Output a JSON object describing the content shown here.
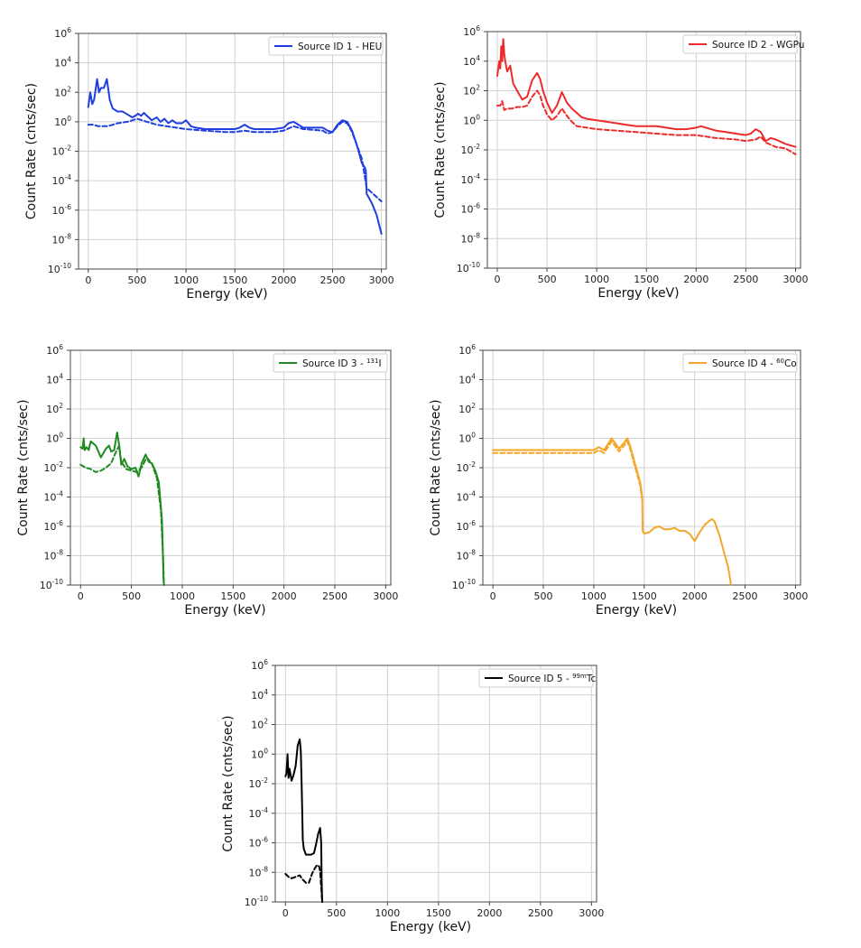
{
  "chart_data": [
    {
      "type": "line",
      "xlabel": "Energy (keV)",
      "ylabel": "Count Rate (cnts/sec)",
      "xlim": [
        -100,
        3050
      ],
      "ylim_log10": [
        -10,
        6
      ],
      "x_ticks": [
        0,
        500,
        1000,
        1500,
        2000,
        2500,
        3000
      ],
      "y_tick_exponents": [
        -10,
        -8,
        -6,
        -4,
        -2,
        0,
        2,
        4,
        6
      ],
      "log_y": true,
      "grid": true,
      "legend_position": "top-right",
      "color": "#1f3fe0",
      "legend": {
        "label": "Source ID 1 - HEU",
        "sup": "",
        "after": ""
      },
      "series": [
        {
          "style": "solid",
          "x": [
            0,
            20,
            40,
            60,
            90,
            110,
            130,
            160,
            190,
            220,
            250,
            300,
            350,
            400,
            450,
            480,
            510,
            540,
            570,
            600,
            650,
            700,
            740,
            780,
            820,
            860,
            900,
            960,
            1000,
            1050,
            1100,
            1200,
            1300,
            1400,
            1500,
            1550,
            1600,
            1650,
            1700,
            1800,
            1900,
            2000,
            2050,
            2100,
            2150,
            2200,
            2300,
            2400,
            2450,
            2500,
            2550,
            2600,
            2650,
            2700,
            2750,
            2800,
            2830,
            2840,
            2850,
            2900,
            2950,
            3000
          ],
          "y": [
            1.0,
            2.0,
            1.2,
            1.5,
            2.9,
            2.0,
            2.3,
            2.3,
            2.9,
            1.5,
            0.9,
            0.7,
            0.7,
            0.5,
            0.3,
            0.4,
            0.55,
            0.4,
            0.6,
            0.4,
            0.1,
            0.3,
            0.0,
            0.2,
            -0.1,
            0.1,
            -0.1,
            -0.1,
            0.1,
            -0.3,
            -0.4,
            -0.5,
            -0.5,
            -0.5,
            -0.5,
            -0.4,
            -0.2,
            -0.4,
            -0.5,
            -0.5,
            -0.5,
            -0.4,
            -0.1,
            0.0,
            -0.2,
            -0.4,
            -0.4,
            -0.4,
            -0.6,
            -0.7,
            -0.2,
            0.1,
            0.0,
            -0.6,
            -1.6,
            -2.8,
            -3.1,
            -3.3,
            -4.9,
            -5.5,
            -6.3,
            -7.6
          ]
        },
        {
          "style": "dashed",
          "x": [
            0,
            50,
            100,
            200,
            300,
            400,
            500,
            550,
            600,
            700,
            800,
            900,
            1000,
            1200,
            1400,
            1500,
            1600,
            1700,
            1900,
            2000,
            2100,
            2200,
            2400,
            2450,
            2500,
            2550,
            2600,
            2650,
            2700,
            2800,
            2850,
            2900,
            2950,
            3000
          ],
          "y": [
            -0.2,
            -0.2,
            -0.3,
            -0.3,
            -0.1,
            0.0,
            0.2,
            0.1,
            0.0,
            -0.2,
            -0.3,
            -0.4,
            -0.5,
            -0.6,
            -0.7,
            -0.7,
            -0.6,
            -0.7,
            -0.7,
            -0.6,
            -0.3,
            -0.5,
            -0.6,
            -0.8,
            -0.7,
            -0.3,
            0.0,
            -0.1,
            -0.7,
            -2.5,
            -4.5,
            -4.8,
            -5.1,
            -5.4
          ]
        }
      ]
    },
    {
      "type": "line",
      "xlabel": "Energy (keV)",
      "ylabel": "Count Rate (cnts/sec)",
      "xlim": [
        -100,
        3050
      ],
      "ylim_log10": [
        -10,
        6
      ],
      "x_ticks": [
        0,
        500,
        1000,
        1500,
        2000,
        2500,
        3000
      ],
      "y_tick_exponents": [
        -10,
        -8,
        -6,
        -4,
        -2,
        0,
        2,
        4,
        6
      ],
      "log_y": true,
      "grid": true,
      "legend_position": "top-right",
      "color": "#ee2b2b",
      "legend": {
        "label": "Source ID 2 - WGPu",
        "sup": "",
        "after": ""
      },
      "series": [
        {
          "style": "solid",
          "x": [
            0,
            20,
            30,
            40,
            50,
            60,
            70,
            80,
            100,
            130,
            160,
            200,
            250,
            300,
            350,
            400,
            430,
            460,
            500,
            550,
            600,
            650,
            700,
            750,
            800,
            850,
            900,
            1000,
            1100,
            1200,
            1300,
            1400,
            1500,
            1600,
            1700,
            1800,
            1900,
            2000,
            2050,
            2100,
            2200,
            2300,
            2400,
            2500,
            2550,
            2600,
            2650,
            2700,
            2750,
            2800,
            2900,
            3000
          ],
          "y": [
            3.0,
            4.0,
            3.5,
            5.0,
            4.0,
            5.5,
            4.5,
            4.0,
            3.3,
            3.7,
            2.5,
            2.0,
            1.4,
            1.6,
            2.7,
            3.2,
            2.8,
            2.0,
            1.2,
            0.5,
            1.0,
            1.9,
            1.2,
            0.8,
            0.5,
            0.2,
            0.1,
            0.0,
            -0.1,
            -0.2,
            -0.3,
            -0.4,
            -0.4,
            -0.4,
            -0.5,
            -0.6,
            -0.6,
            -0.5,
            -0.4,
            -0.5,
            -0.7,
            -0.8,
            -0.9,
            -1.0,
            -0.9,
            -0.6,
            -0.8,
            -1.4,
            -1.2,
            -1.3,
            -1.6,
            -1.8
          ]
        },
        {
          "style": "dashed",
          "x": [
            0,
            30,
            50,
            70,
            100,
            150,
            200,
            250,
            300,
            350,
            400,
            430,
            460,
            500,
            550,
            600,
            650,
            700,
            750,
            800,
            900,
            1000,
            1200,
            1400,
            1600,
            1800,
            2000,
            2100,
            2200,
            2400,
            2500,
            2600,
            2650,
            2700,
            2800,
            2900,
            3000
          ],
          "y": [
            1.0,
            1.0,
            1.3,
            0.7,
            0.8,
            0.8,
            0.9,
            0.9,
            1.0,
            1.6,
            2.0,
            1.7,
            1.0,
            0.4,
            0.0,
            0.3,
            0.8,
            0.3,
            -0.1,
            -0.4,
            -0.5,
            -0.6,
            -0.7,
            -0.8,
            -0.9,
            -1.0,
            -1.0,
            -1.1,
            -1.2,
            -1.3,
            -1.4,
            -1.3,
            -1.1,
            -1.5,
            -1.8,
            -1.9,
            -2.3
          ]
        }
      ]
    },
    {
      "type": "line",
      "xlabel": "Energy (keV)",
      "ylabel": "Count Rate (cnts/sec)",
      "xlim": [
        -100,
        3050
      ],
      "ylim_log10": [
        -10,
        6
      ],
      "x_ticks": [
        0,
        500,
        1000,
        1500,
        2000,
        2500,
        3000
      ],
      "y_tick_exponents": [
        -10,
        -8,
        -6,
        -4,
        -2,
        0,
        2,
        4,
        6
      ],
      "log_y": true,
      "grid": true,
      "legend_position": "top-right",
      "color": "#1f8a1f",
      "legend": {
        "label": "Source ID 3 - ",
        "sup": "131",
        "after": "I"
      },
      "series": [
        {
          "style": "solid",
          "x": [
            0,
            20,
            30,
            40,
            60,
            80,
            100,
            150,
            200,
            250,
            280,
            300,
            330,
            360,
            380,
            400,
            430,
            460,
            500,
            540,
            570,
            600,
            640,
            670,
            700,
            740,
            770,
            800,
            810,
            815,
            820
          ],
          "y": [
            -0.6,
            -0.7,
            0.0,
            -0.8,
            -0.6,
            -0.8,
            -0.2,
            -0.5,
            -1.3,
            -0.7,
            -0.5,
            -0.9,
            -0.8,
            0.4,
            -0.5,
            -1.8,
            -1.4,
            -1.9,
            -2.1,
            -2.0,
            -2.6,
            -1.7,
            -1.1,
            -1.6,
            -1.7,
            -2.3,
            -3.0,
            -5.5,
            -8.0,
            -9.5,
            -10.0
          ]
        },
        {
          "style": "dashed",
          "x": [
            0,
            50,
            100,
            150,
            200,
            250,
            300,
            350,
            380,
            400,
            450,
            500,
            550,
            600,
            650,
            700,
            750,
            790,
            810,
            820
          ],
          "y": [
            -1.8,
            -2.0,
            -2.1,
            -2.3,
            -2.2,
            -2.0,
            -1.7,
            -0.9,
            -0.5,
            -1.6,
            -2.1,
            -2.2,
            -2.3,
            -2.0,
            -1.3,
            -1.7,
            -2.7,
            -4.9,
            -8.0,
            -10.0
          ]
        }
      ]
    },
    {
      "type": "line",
      "xlabel": "Energy (keV)",
      "ylabel": "Count Rate (cnts/sec)",
      "xlim": [
        -100,
        3050
      ],
      "ylim_log10": [
        -10,
        6
      ],
      "x_ticks": [
        0,
        500,
        1000,
        1500,
        2000,
        2500,
        3000
      ],
      "y_tick_exponents": [
        -10,
        -8,
        -6,
        -4,
        -2,
        0,
        2,
        4,
        6
      ],
      "log_y": true,
      "grid": true,
      "legend_position": "top-right",
      "color": "#f4a62a",
      "legend": {
        "label": "Source ID 4 - ",
        "sup": "60",
        "after": "Co"
      },
      "series": [
        {
          "style": "solid",
          "x": [
            0,
            100,
            500,
            900,
            1000,
            1050,
            1100,
            1150,
            1175,
            1200,
            1250,
            1300,
            1333,
            1360,
            1400,
            1460,
            1480,
            1485,
            1500,
            1550,
            1600,
            1650,
            1700,
            1750,
            1800,
            1850,
            1900,
            1950,
            2000,
            2050,
            2100,
            2150,
            2175,
            2200,
            2250,
            2300,
            2330,
            2350,
            2360
          ],
          "y": [
            -0.8,
            -0.8,
            -0.8,
            -0.8,
            -0.8,
            -0.6,
            -0.8,
            -0.3,
            0.0,
            -0.2,
            -0.7,
            -0.3,
            0.0,
            -0.5,
            -1.5,
            -3.0,
            -4.0,
            -6.3,
            -6.5,
            -6.4,
            -6.1,
            -6.0,
            -6.2,
            -6.2,
            -6.1,
            -6.3,
            -6.3,
            -6.5,
            -7.0,
            -6.4,
            -5.9,
            -5.6,
            -5.5,
            -5.7,
            -6.7,
            -8.0,
            -8.7,
            -9.5,
            -10.0
          ]
        },
        {
          "style": "dashed",
          "x": [
            0,
            100,
            500,
            900,
            1000,
            1050,
            1100,
            1150,
            1175,
            1200,
            1250,
            1300,
            1333,
            1360,
            1400,
            1460,
            1480
          ],
          "y": [
            -1.0,
            -1.0,
            -1.0,
            -1.0,
            -1.0,
            -0.8,
            -1.0,
            -0.5,
            -0.2,
            -0.4,
            -0.9,
            -0.5,
            -0.2,
            -0.7,
            -1.7,
            -3.2,
            -4.2
          ]
        }
      ]
    },
    {
      "type": "line",
      "xlabel": "Energy (keV)",
      "ylabel": "Count Rate (cnts/sec)",
      "xlim": [
        -100,
        3050
      ],
      "ylim_log10": [
        -10,
        6
      ],
      "x_ticks": [
        0,
        500,
        1000,
        1500,
        2000,
        2500,
        3000
      ],
      "y_tick_exponents": [
        -10,
        -8,
        -6,
        -4,
        -2,
        0,
        2,
        4,
        6
      ],
      "log_y": true,
      "grid": true,
      "legend_position": "top-right",
      "color": "#000000",
      "legend": {
        "label": "Source ID 5 - ",
        "sup": "99m",
        "after": "Tc"
      },
      "series": [
        {
          "style": "solid",
          "x": [
            0,
            10,
            20,
            30,
            40,
            60,
            80,
            100,
            120,
            140,
            150,
            160,
            170,
            180,
            200,
            250,
            280,
            300,
            320,
            340,
            350,
            355,
            360
          ],
          "y": [
            -1.5,
            -1.3,
            0.0,
            -1.6,
            -1.0,
            -1.8,
            -1.4,
            -0.8,
            0.6,
            1.0,
            0.2,
            -2.5,
            -5.8,
            -6.4,
            -6.8,
            -6.8,
            -6.7,
            -6.1,
            -5.4,
            -5.0,
            -6.0,
            -8.5,
            -10.0
          ]
        },
        {
          "style": "dashed",
          "x": [
            0,
            30,
            60,
            100,
            140,
            170,
            200,
            230,
            260,
            290,
            310,
            330,
            340,
            350,
            360
          ],
          "y": [
            -8.1,
            -8.3,
            -8.4,
            -8.3,
            -8.2,
            -8.5,
            -8.7,
            -8.7,
            -8.1,
            -7.7,
            -7.5,
            -7.6,
            -7.9,
            -9.0,
            -10.0
          ]
        }
      ]
    }
  ]
}
